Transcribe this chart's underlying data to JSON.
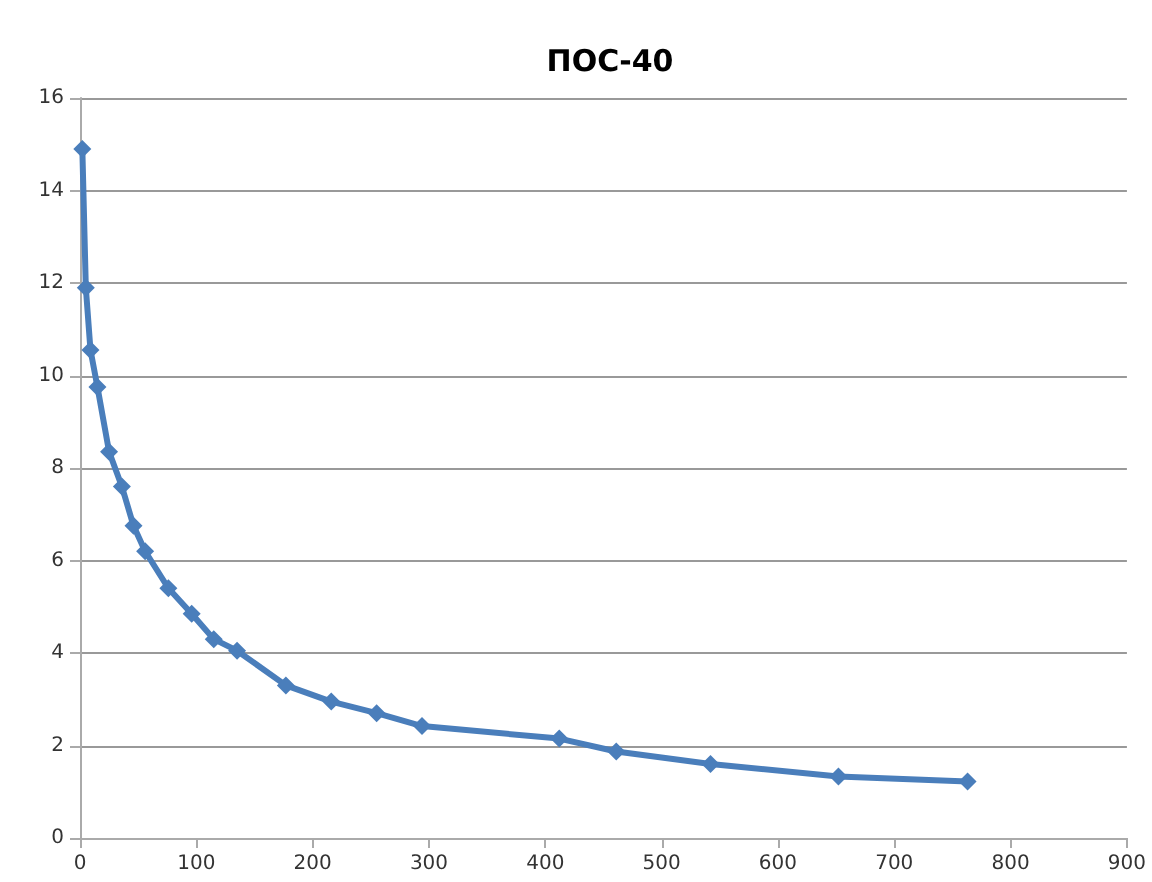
{
  "chart_data": {
    "type": "line",
    "title": "ПОС-40",
    "x": [
      2,
      5,
      9,
      15,
      25,
      36,
      46,
      56,
      76,
      96,
      115,
      135,
      177,
      216,
      255,
      294,
      412,
      461,
      542,
      652,
      763
    ],
    "series": [
      {
        "color": "#4a7ebb",
        "values": [
          14.9,
          11.9,
          10.55,
          9.75,
          8.35,
          7.6,
          6.75,
          6.2,
          5.4,
          4.85,
          4.3,
          4.05,
          3.3,
          2.95,
          2.7,
          2.42,
          2.15,
          1.87,
          1.6,
          1.33,
          1.22
        ]
      }
    ],
    "xlim": [
      0,
      900
    ],
    "xticks": [
      0,
      100,
      200,
      300,
      400,
      500,
      600,
      700,
      800,
      900
    ],
    "ylim": [
      0,
      16
    ],
    "yticks": [
      0,
      2,
      4,
      6,
      8,
      10,
      12,
      14,
      16
    ],
    "grid": "y",
    "marker": "diamond",
    "line_style": "solid"
  }
}
